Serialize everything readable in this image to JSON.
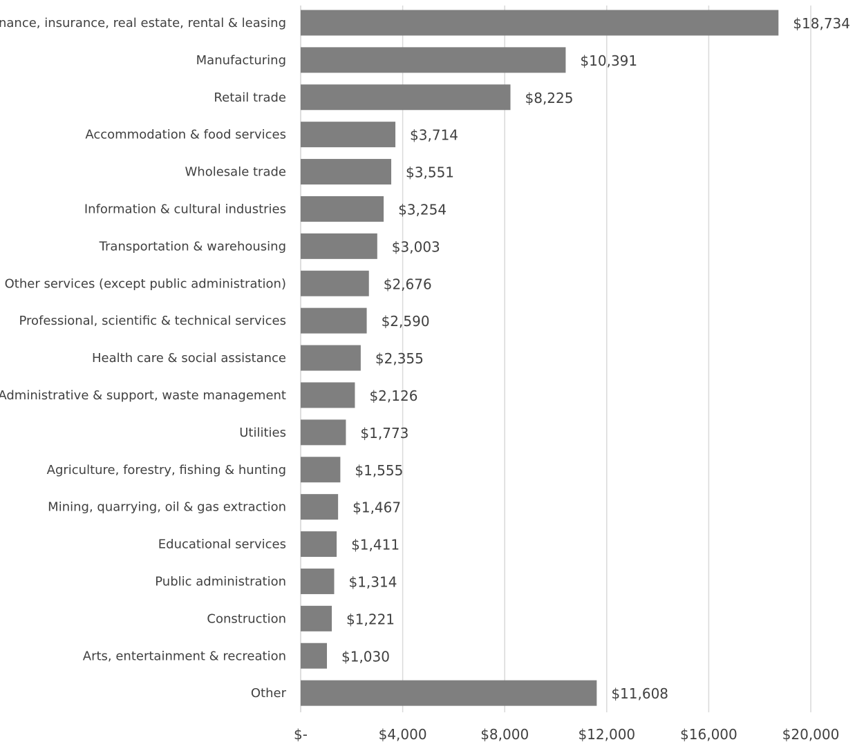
{
  "chart_data": {
    "type": "bar",
    "orientation": "horizontal",
    "categories": [
      "Finance, insurance, real estate, rental & leasing",
      "Manufacturing",
      "Retail trade",
      "Accommodation & food services",
      "Wholesale trade",
      "Information & cultural industries",
      "Transportation & warehousing",
      "Other services (except public administration)",
      "Professional, scientific & technical services",
      "Health care & social assistance",
      "Administrative & support, waste management",
      "Utilities",
      "Agriculture, forestry, fishing & hunting",
      "Mining, quarrying, oil & gas extraction",
      "Educational services",
      "Public administration",
      "Construction",
      "Arts, entertainment & recreation",
      "Other"
    ],
    "values": [
      18734,
      10391,
      8225,
      3714,
      3551,
      3254,
      3003,
      2676,
      2590,
      2355,
      2126,
      1773,
      1555,
      1467,
      1411,
      1314,
      1221,
      1030,
      11608
    ],
    "value_labels": [
      "$18,734",
      "$10,391",
      "$8,225",
      "$3,714",
      "$3,551",
      "$3,254",
      "$3,003",
      "$2,676",
      "$2,590",
      "$2,355",
      "$2,126",
      "$1,773",
      "$1,555",
      "$1,467",
      "$1,411",
      "$1,314",
      "$1,221",
      "$1,030",
      "$11,608"
    ],
    "x_ticks": [
      0,
      4000,
      8000,
      12000,
      16000,
      20000
    ],
    "x_tick_labels": [
      "$-",
      "$4,000",
      "$8,000",
      "$12,000",
      "$16,000",
      "$20,000"
    ],
    "xlim": [
      0,
      20000
    ],
    "grid": true,
    "legend": "none",
    "title": "",
    "xlabel": "",
    "ylabel": "",
    "bar_color": "#7f7f7f",
    "grid_color": "#d9d9d9",
    "text_color": "#404040"
  }
}
